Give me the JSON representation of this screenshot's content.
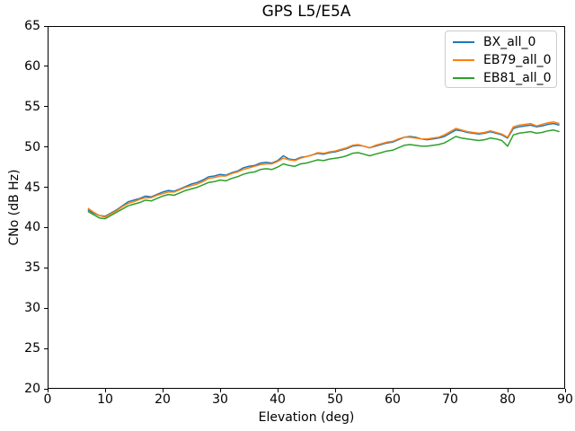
{
  "figure": {
    "background": "#ffffff",
    "text_color": "#000000",
    "legend_border_color": "#cccccc"
  },
  "chart_data": {
    "type": "line",
    "title": "GPS L5/E5A",
    "xlabel": "Elevation (deg)",
    "ylabel": "CNo (dB Hz)",
    "xlim": [
      0,
      90
    ],
    "ylim": [
      20,
      65
    ],
    "xticks": [
      0,
      10,
      20,
      30,
      40,
      50,
      60,
      70,
      80,
      90
    ],
    "yticks": [
      20,
      25,
      30,
      35,
      40,
      45,
      50,
      55,
      60,
      65
    ],
    "grid": false,
    "legend_position": "upper right",
    "x": [
      7,
      8,
      9,
      10,
      11,
      12,
      13,
      14,
      15,
      16,
      17,
      18,
      19,
      20,
      21,
      22,
      23,
      24,
      25,
      26,
      27,
      28,
      29,
      30,
      31,
      32,
      33,
      34,
      35,
      36,
      37,
      38,
      39,
      40,
      41,
      42,
      43,
      44,
      45,
      46,
      47,
      48,
      49,
      50,
      51,
      52,
      53,
      54,
      55,
      56,
      57,
      58,
      59,
      60,
      61,
      62,
      63,
      64,
      65,
      66,
      67,
      68,
      69,
      70,
      71,
      72,
      73,
      74,
      75,
      76,
      77,
      78,
      79,
      80,
      81,
      82,
      83,
      84,
      85,
      86,
      87,
      88,
      89
    ],
    "series": [
      {
        "name": "BX_all_0",
        "color": "#1f77b4",
        "values": [
          42.2,
          41.8,
          41.5,
          41.4,
          41.8,
          42.2,
          42.7,
          43.2,
          43.4,
          43.6,
          43.9,
          43.8,
          44.1,
          44.4,
          44.6,
          44.5,
          44.8,
          45.1,
          45.4,
          45.6,
          45.9,
          46.3,
          46.4,
          46.6,
          46.5,
          46.8,
          47.0,
          47.4,
          47.6,
          47.7,
          48.0,
          48.1,
          48.0,
          48.3,
          48.9,
          48.5,
          48.4,
          48.7,
          48.8,
          49.0,
          49.2,
          49.1,
          49.3,
          49.4,
          49.6,
          49.8,
          50.1,
          50.2,
          50.1,
          49.9,
          50.1,
          50.3,
          50.5,
          50.6,
          50.9,
          51.2,
          51.3,
          51.2,
          51.0,
          50.9,
          51.0,
          51.1,
          51.3,
          51.7,
          52.1,
          52.0,
          51.8,
          51.7,
          51.6,
          51.7,
          51.9,
          51.7,
          51.5,
          51.1,
          52.3,
          52.5,
          52.6,
          52.7,
          52.5,
          52.6,
          52.8,
          52.9,
          52.7
        ]
      },
      {
        "name": "EB79_all_0",
        "color": "#ff7f0e",
        "values": [
          42.4,
          41.9,
          41.5,
          41.3,
          41.7,
          42.1,
          42.6,
          43.0,
          43.2,
          43.5,
          43.7,
          43.7,
          44.0,
          44.2,
          44.4,
          44.4,
          44.7,
          45.0,
          45.2,
          45.4,
          45.7,
          46.1,
          46.2,
          46.4,
          46.4,
          46.7,
          46.9,
          47.2,
          47.4,
          47.6,
          47.8,
          47.9,
          47.9,
          48.2,
          48.6,
          48.4,
          48.3,
          48.6,
          48.8,
          49.0,
          49.3,
          49.2,
          49.4,
          49.5,
          49.7,
          49.9,
          50.2,
          50.3,
          50.1,
          49.9,
          50.2,
          50.4,
          50.6,
          50.7,
          51.0,
          51.2,
          51.2,
          51.1,
          51.0,
          51.0,
          51.1,
          51.2,
          51.5,
          51.9,
          52.3,
          52.1,
          51.9,
          51.8,
          51.7,
          51.8,
          52.0,
          51.8,
          51.6,
          51.2,
          52.5,
          52.7,
          52.8,
          52.9,
          52.6,
          52.8,
          53.0,
          53.1,
          52.9
        ]
      },
      {
        "name": "EB81_all_0",
        "color": "#2ca02c",
        "values": [
          42.0,
          41.6,
          41.2,
          41.1,
          41.5,
          41.9,
          42.3,
          42.7,
          42.9,
          43.1,
          43.4,
          43.3,
          43.6,
          43.9,
          44.1,
          44.0,
          44.3,
          44.6,
          44.8,
          45.0,
          45.3,
          45.6,
          45.7,
          45.9,
          45.8,
          46.1,
          46.3,
          46.6,
          46.8,
          46.9,
          47.2,
          47.3,
          47.2,
          47.5,
          47.9,
          47.7,
          47.6,
          47.9,
          48.0,
          48.2,
          48.4,
          48.3,
          48.5,
          48.6,
          48.7,
          48.9,
          49.2,
          49.3,
          49.1,
          48.9,
          49.1,
          49.3,
          49.5,
          49.6,
          49.9,
          50.2,
          50.3,
          50.2,
          50.1,
          50.1,
          50.2,
          50.3,
          50.5,
          50.9,
          51.3,
          51.1,
          51.0,
          50.9,
          50.8,
          50.9,
          51.1,
          51.0,
          50.8,
          50.1,
          51.5,
          51.7,
          51.8,
          51.9,
          51.7,
          51.8,
          52.0,
          52.1,
          51.9
        ]
      }
    ]
  }
}
